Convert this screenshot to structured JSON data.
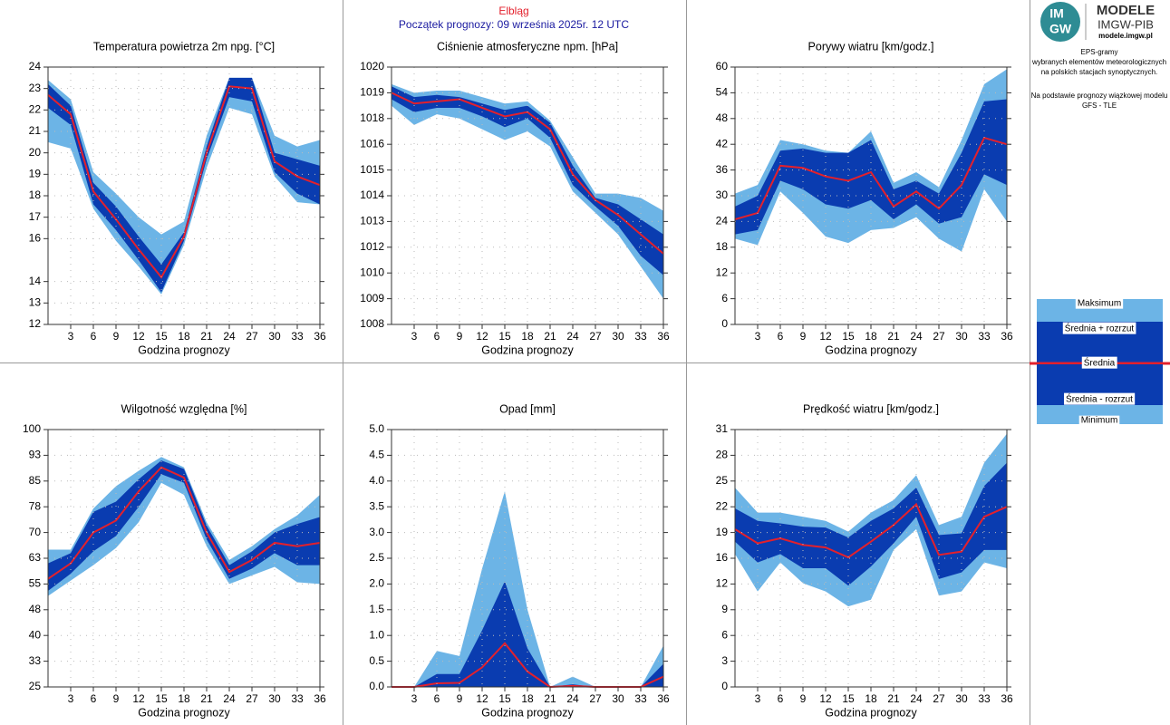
{
  "header": {
    "station": "Elbląg",
    "subtitle": "Początek prognozy: 09 września 2025r. 12 UTC"
  },
  "logo": {
    "mark_top": "IM",
    "mark_bottom": "GW",
    "title": "MODELE",
    "org": "IMGW-PIB",
    "url": "modele.imgw.pl"
  },
  "sidebar": {
    "lines": [
      "EPS-gramy",
      "wybranych elementów meteorologicznych",
      "na polskich stacjach  synoptycznych."
    ],
    "source": [
      "Na podstawie prognozy wiązkowej modelu",
      "GFS - TLE"
    ]
  },
  "legend": [
    {
      "name": "Maksimum",
      "color": "#6cb4e6"
    },
    {
      "name": "Średnia + rozrzut",
      "color": "#0a3cb0"
    },
    {
      "name": "Średnia",
      "color": "#e3202c"
    },
    {
      "name": "Średnia - rozrzut",
      "color": "#0a3cb0"
    },
    {
      "name": "Minimum",
      "color": "#6cb4e6"
    }
  ],
  "chart_data": [
    {
      "type": "band",
      "title": "Temperatura powietrza 2m npg. [°C]",
      "xlabel": "Godzina prognozy",
      "x": [
        0,
        3,
        6,
        9,
        12,
        15,
        18,
        21,
        24,
        27,
        30,
        33,
        36
      ],
      "xlim": [
        0,
        36
      ],
      "xticks": [
        3,
        6,
        9,
        12,
        15,
        18,
        21,
        24,
        27,
        30,
        33,
        36
      ],
      "ylim": [
        12,
        24
      ],
      "yticks": [
        12,
        13,
        14,
        16,
        17,
        18,
        19,
        20,
        21,
        22,
        23,
        24
      ],
      "series": [
        {
          "values": [
            23.4,
            22.5,
            19.1,
            18.1,
            17.0,
            16.2,
            16.8,
            20.8,
            23.5,
            23.5,
            20.8,
            20.3,
            20.6
          ]
        },
        {
          "values": [
            23.2,
            22.2,
            18.6,
            17.5,
            16.1,
            14.8,
            16.3,
            20.3,
            23.5,
            23.5,
            20.0,
            19.7,
            19.4
          ]
        },
        {
          "values": [
            22.7,
            21.8,
            18.2,
            16.9,
            15.5,
            14.2,
            16.1,
            20.0,
            23.1,
            23.0,
            19.6,
            18.9,
            18.5
          ]
        },
        {
          "values": [
            22.1,
            21.3,
            17.6,
            16.4,
            15.0,
            13.5,
            15.9,
            19.7,
            22.6,
            22.4,
            19.1,
            18.1,
            17.6
          ]
        },
        {
          "values": [
            20.5,
            20.2,
            17.4,
            15.9,
            14.7,
            13.4,
            15.7,
            19.3,
            22.1,
            21.8,
            18.9,
            17.7,
            17.6
          ]
        }
      ]
    },
    {
      "type": "band",
      "title": "Ciśnienie atmosferyczne npm. [hPa]",
      "xlabel": "Godzina prognozy",
      "x": [
        0,
        3,
        6,
        9,
        12,
        15,
        18,
        21,
        24,
        27,
        30,
        33,
        36
      ],
      "xlim": [
        0,
        36
      ],
      "xticks": [
        3,
        6,
        9,
        12,
        15,
        18,
        21,
        24,
        27,
        30,
        33,
        36
      ],
      "ylim": [
        1008,
        1020
      ],
      "yticks": [
        1008,
        {
          "value": 1009.2,
          "label": "1009"
        },
        {
          "value": 1010.4,
          "label": "1010"
        },
        {
          "value": 1011.6,
          "label": "1012"
        },
        {
          "value": 1012.8,
          "label": "1013"
        },
        1014,
        {
          "value": 1015.2,
          "label": "1015"
        },
        {
          "value": 1016.4,
          "label": "1016"
        },
        {
          "value": 1017.6,
          "label": "1018"
        },
        {
          "value": 1018.8,
          "label": "1019"
        },
        1020
      ],
      "series": [
        {
          "values": [
            1019.2,
            1018.8,
            1018.9,
            1018.9,
            1018.6,
            1018.3,
            1018.4,
            1017.5,
            1015.8,
            1014.1,
            1014.1,
            1013.9,
            1013.3
          ]
        },
        {
          "values": [
            1019.1,
            1018.6,
            1018.7,
            1018.6,
            1018.3,
            1018.0,
            1018.2,
            1017.4,
            1015.4,
            1013.9,
            1013.6,
            1012.9,
            1012.2
          ]
        },
        {
          "values": [
            1018.8,
            1018.3,
            1018.4,
            1018.5,
            1018.1,
            1017.7,
            1017.9,
            1017.1,
            1015.0,
            1013.8,
            1013.1,
            1012.2,
            1011.3
          ]
        },
        {
          "values": [
            1018.5,
            1017.9,
            1018.1,
            1018.1,
            1017.7,
            1017.2,
            1017.6,
            1016.7,
            1014.5,
            1013.5,
            1012.6,
            1011.2,
            1010.3
          ]
        },
        {
          "values": [
            1018.2,
            1017.3,
            1017.8,
            1017.6,
            1017.1,
            1016.6,
            1017.0,
            1016.3,
            1014.2,
            1013.2,
            1012.2,
            1010.7,
            1009.2
          ]
        }
      ]
    },
    {
      "type": "band",
      "title": "Porywy wiatru [km/godz.]",
      "xlabel": "Godzina prognozy",
      "x": [
        0,
        3,
        6,
        9,
        12,
        15,
        18,
        21,
        24,
        27,
        30,
        33,
        36
      ],
      "xlim": [
        0,
        36
      ],
      "xticks": [
        3,
        6,
        9,
        12,
        15,
        18,
        21,
        24,
        27,
        30,
        33,
        36
      ],
      "ylim": [
        0,
        60
      ],
      "yticks": [
        0,
        6,
        12,
        18,
        24,
        30,
        36,
        42,
        48,
        54,
        60
      ],
      "series": [
        {
          "values": [
            30.5,
            32.5,
            43,
            42,
            40.5,
            40,
            45,
            33,
            35.5,
            32,
            43,
            56,
            59.5
          ]
        },
        {
          "values": [
            27.5,
            30,
            40.5,
            41,
            40,
            40,
            43,
            31.5,
            33.5,
            30.5,
            40,
            52,
            52.5
          ]
        },
        {
          "values": [
            24.5,
            26,
            37,
            36.5,
            34.5,
            33.5,
            35.5,
            27.5,
            31,
            27,
            32.5,
            43.5,
            42
          ]
        },
        {
          "values": [
            21,
            22,
            33.5,
            31.5,
            28,
            27,
            29,
            24.5,
            28,
            23.5,
            25,
            35,
            32.5
          ]
        },
        {
          "values": [
            20,
            18.5,
            31,
            26,
            20.5,
            19,
            22,
            22.5,
            25,
            20,
            17,
            31.5,
            24
          ]
        }
      ]
    },
    {
      "type": "band",
      "title": "Wilgotność względna [%]",
      "xlabel": "Godzina prognozy",
      "x": [
        0,
        3,
        6,
        9,
        12,
        15,
        18,
        21,
        24,
        27,
        30,
        33,
        36
      ],
      "xlim": [
        0,
        36
      ],
      "xticks": [
        3,
        6,
        9,
        12,
        15,
        18,
        21,
        24,
        27,
        30,
        33,
        36
      ],
      "ylim": [
        25,
        100
      ],
      "yticks": [
        25,
        {
          "value": 32.5,
          "label": "33"
        },
        40,
        {
          "value": 47.5,
          "label": "48"
        },
        55,
        {
          "value": 62.5,
          "label": "63"
        },
        70,
        {
          "value": 77.5,
          "label": "78"
        },
        85,
        {
          "value": 92.5,
          "label": "93"
        },
        100
      ],
      "series": [
        {
          "values": [
            65,
            65,
            77,
            83.5,
            88,
            92,
            89,
            73,
            62,
            66,
            71,
            75,
            81
          ]
        },
        {
          "values": [
            61,
            64,
            76,
            79,
            85.5,
            91,
            88.5,
            72,
            60.5,
            64.5,
            70,
            72.5,
            74.5
          ]
        },
        {
          "values": [
            56.5,
            61,
            70,
            73.5,
            82,
            89,
            86,
            70,
            58.5,
            62,
            67,
            66,
            67
          ]
        },
        {
          "values": [
            53,
            58,
            64.5,
            69,
            77.5,
            87,
            84.5,
            68,
            56.5,
            59.5,
            64,
            60.5,
            60.5
          ]
        },
        {
          "values": [
            51.5,
            56,
            60.5,
            65.5,
            73,
            84.5,
            81,
            66,
            55,
            57.5,
            60,
            55.5,
            55
          ]
        }
      ]
    },
    {
      "type": "band",
      "title": "Opad [mm]",
      "xlabel": "Godzina prognozy",
      "x": [
        0,
        3,
        6,
        9,
        12,
        15,
        18,
        21,
        24,
        27,
        30,
        33,
        36
      ],
      "xlim": [
        0,
        36
      ],
      "xticks": [
        3,
        6,
        9,
        12,
        15,
        18,
        21,
        24,
        27,
        30,
        33,
        36
      ],
      "ylim": [
        0,
        5
      ],
      "yticks": [
        {
          "value": 0,
          "label": "0.0"
        },
        0.5,
        {
          "value": 1,
          "label": "1.0"
        },
        1.5,
        {
          "value": 2,
          "label": "2.0"
        },
        2.5,
        {
          "value": 3,
          "label": "3.0"
        },
        3.5,
        {
          "value": 4,
          "label": "4.0"
        },
        4.5,
        {
          "value": 5,
          "label": "5.0"
        }
      ],
      "series": [
        {
          "values": [
            0,
            0,
            0.7,
            0.6,
            2.3,
            3.8,
            1.5,
            0,
            0.2,
            0,
            0,
            0,
            0.8
          ]
        },
        {
          "values": [
            0,
            0,
            0.25,
            0.25,
            1.1,
            2.05,
            0.75,
            0,
            0.05,
            0,
            0,
            0,
            0.45
          ]
        },
        {
          "values": [
            0,
            0,
            0.07,
            0.08,
            0.38,
            0.85,
            0.3,
            0,
            0.02,
            0,
            0,
            0,
            0.2
          ]
        },
        {
          "values": [
            0,
            0,
            0,
            0,
            0,
            0,
            0,
            0,
            0,
            0,
            0,
            0,
            0
          ]
        },
        {
          "values": [
            0,
            0,
            0,
            0,
            0,
            0,
            0,
            0,
            0,
            0,
            0,
            0,
            0
          ]
        }
      ]
    },
    {
      "type": "band",
      "title": "Prędkość wiatru [km/godz.]",
      "xlabel": "Godzina prognozy",
      "x": [
        0,
        3,
        6,
        9,
        12,
        15,
        18,
        21,
        24,
        27,
        30,
        33,
        36
      ],
      "xlim": [
        0,
        36
      ],
      "xticks": [
        3,
        6,
        9,
        12,
        15,
        18,
        21,
        24,
        27,
        30,
        33,
        36
      ],
      "ylim": [
        0,
        31
      ],
      "yticks": [
        0,
        {
          "value": 3.1,
          "label": "3"
        },
        {
          "value": 6.2,
          "label": "6"
        },
        {
          "value": 9.3,
          "label": "9"
        },
        {
          "value": 12.4,
          "label": "12"
        },
        {
          "value": 15.5,
          "label": "16"
        },
        {
          "value": 18.6,
          "label": "19"
        },
        {
          "value": 21.7,
          "label": "22"
        },
        {
          "value": 24.8,
          "label": "25"
        },
        {
          "value": 27.9,
          "label": "28"
        },
        31
      ],
      "series": [
        {
          "values": [
            24,
            21,
            21,
            20.5,
            20,
            18.7,
            21,
            22.5,
            25.5,
            19.5,
            20.5,
            27,
            30.5
          ]
        },
        {
          "values": [
            21.5,
            20,
            19.7,
            19.3,
            19.2,
            18,
            20,
            21.5,
            24,
            18.3,
            18.5,
            24.2,
            27
          ]
        },
        {
          "values": [
            19,
            17.3,
            17.9,
            17.1,
            16.8,
            15.6,
            17.5,
            19.5,
            22,
            15.9,
            16.3,
            20.5,
            21.7
          ]
        },
        {
          "values": [
            17.5,
            15,
            16,
            14.3,
            14.3,
            12.2,
            14.5,
            17.3,
            20.5,
            13,
            13.8,
            16.5,
            16.5
          ]
        },
        {
          "values": [
            16,
            11.5,
            15,
            12.5,
            11.5,
            9.7,
            10.5,
            16.5,
            19,
            11,
            11.5,
            15,
            14.3
          ]
        }
      ]
    }
  ]
}
